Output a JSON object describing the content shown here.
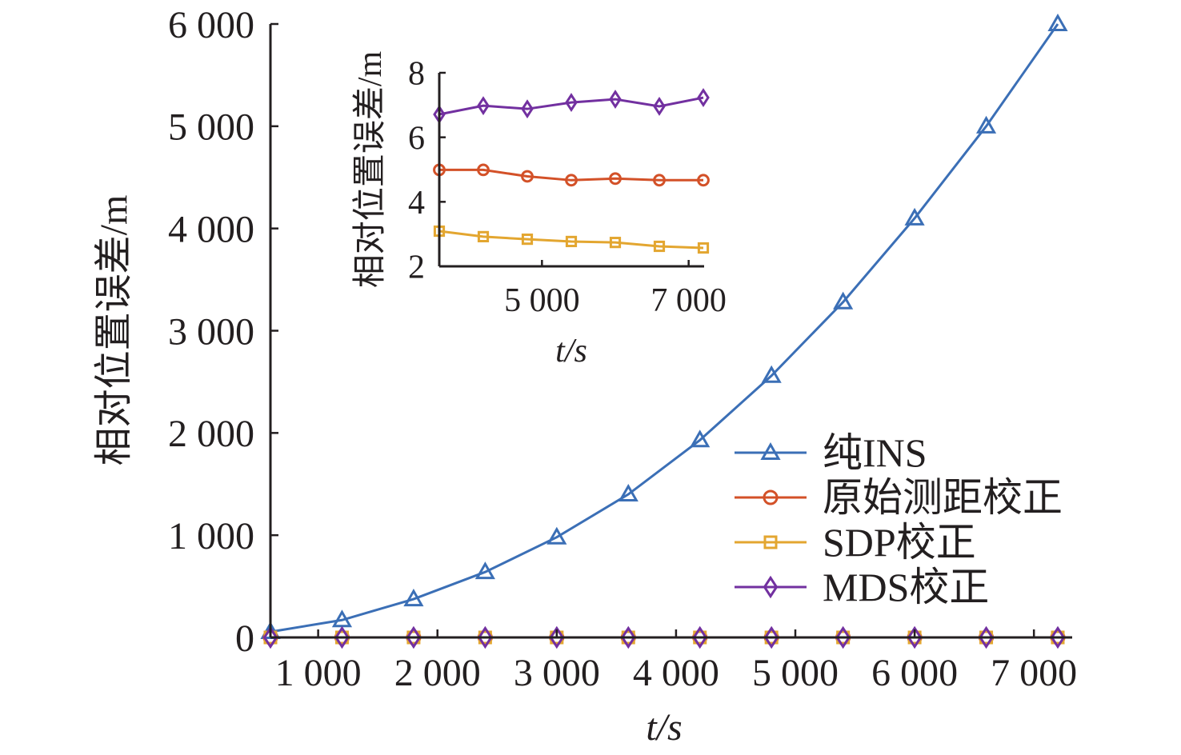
{
  "chart_data": [
    {
      "type": "line",
      "xlabel": "t/s",
      "ylabel": "相对位置误差/m",
      "xlim": [
        600,
        7200
      ],
      "ylim": [
        0,
        6000
      ],
      "xticks": [
        1000,
        2000,
        3000,
        4000,
        5000,
        6000,
        7000
      ],
      "xtick_labels": [
        "1 000",
        "2 000",
        "3 000",
        "4 000",
        "5 000",
        "6 000",
        "7 000"
      ],
      "yticks": [
        0,
        1000,
        2000,
        3000,
        4000,
        5000,
        6000
      ],
      "ytick_labels": [
        "0",
        "1 000",
        "2 000",
        "3 000",
        "4 000",
        "5 000",
        "6 000"
      ],
      "grid": false,
      "legend_placement": "right",
      "x": [
        600,
        1200,
        1800,
        2400,
        3000,
        3600,
        4200,
        4800,
        5400,
        6000,
        6600,
        7200
      ],
      "series": [
        {
          "name": "纯INS",
          "color": "#3b6fb6",
          "marker": "triangle",
          "values": [
            55,
            170,
            375,
            640,
            980,
            1400,
            1930,
            2560,
            3280,
            4100,
            5000,
            6000
          ]
        },
        {
          "name": "原始测距校正",
          "color": "#d35128",
          "marker": "circle",
          "values": [
            0,
            0,
            0,
            0,
            0,
            0,
            0,
            0,
            0,
            0,
            0,
            0
          ]
        },
        {
          "name": "SDP校正",
          "color": "#e3a630",
          "marker": "square",
          "values": [
            0,
            0,
            0,
            0,
            0,
            0,
            0,
            0,
            0,
            0,
            0,
            0
          ]
        },
        {
          "name": "MDS校正",
          "color": "#7230a0",
          "marker": "diamond",
          "values": [
            0,
            0,
            0,
            0,
            0,
            0,
            0,
            0,
            0,
            0,
            0,
            0
          ]
        }
      ]
    },
    {
      "type": "line",
      "xlabel": "t/s",
      "ylabel": "相对位置误差/m",
      "xlim": [
        3600,
        7200
      ],
      "ylim": [
        2,
        8
      ],
      "xticks": [
        5000,
        7000
      ],
      "xtick_labels": [
        "5 000",
        "7 000"
      ],
      "yticks": [
        2,
        4,
        6,
        8
      ],
      "ytick_labels": [
        "2",
        "4",
        "6",
        "8"
      ],
      "grid": false,
      "x": [
        3600,
        4200,
        4800,
        5400,
        6000,
        6600,
        7200
      ],
      "series": [
        {
          "color": "#d35128",
          "marker": "circle",
          "values": [
            4.99,
            4.99,
            4.79,
            4.67,
            4.72,
            4.67,
            4.67
          ]
        },
        {
          "color": "#e3a630",
          "marker": "square",
          "values": [
            3.09,
            2.92,
            2.84,
            2.77,
            2.74,
            2.62,
            2.57
          ]
        },
        {
          "color": "#7230a0",
          "marker": "diamond",
          "values": [
            6.71,
            6.98,
            6.88,
            7.08,
            7.18,
            6.96,
            7.23
          ]
        }
      ]
    }
  ]
}
